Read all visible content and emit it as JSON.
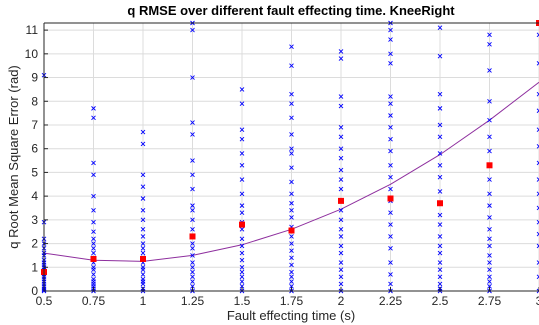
{
  "chart_data": {
    "type": "scatter",
    "title": "q RMSE over different fault effecting time. KneeRight",
    "xlabel": "Fault effecting time (s)",
    "ylabel": "q Root Mean Square Error (rad)",
    "xlim": [
      0.5,
      3
    ],
    "ylim": [
      0,
      11.3
    ],
    "x_ticks": [
      0.5,
      0.75,
      1,
      1.25,
      1.5,
      1.75,
      2,
      2.25,
      2.5,
      2.75,
      3
    ],
    "x_tick_labels": [
      "0.5",
      "0.75",
      "1",
      "1.25",
      "1.5",
      "1.75",
      "2",
      "2.25",
      "2.5",
      "2.75",
      "3"
    ],
    "y_ticks": [
      0,
      1,
      2,
      3,
      4,
      5,
      6,
      7,
      8,
      9,
      10,
      11
    ],
    "y_tick_labels": [
      "0",
      "1",
      "2",
      "3",
      "4",
      "5",
      "6",
      "7",
      "8",
      "9",
      "10",
      "11"
    ],
    "grid": true,
    "colors": {
      "samples": "#0000ff",
      "means": "#ff0000",
      "fit": "#8e2f9e",
      "grid": "#dcdcdc",
      "axis": "#262626"
    },
    "series": [
      {
        "type": "scatter",
        "marker": "x",
        "x": [
          0.5,
          0.5,
          0.5,
          0.5,
          0.5,
          0.5,
          0.5,
          0.5,
          0.5,
          0.5,
          0.5,
          0.5,
          0.5,
          0.5,
          0.5,
          0.5,
          0.5,
          0.5,
          0.5,
          0.5,
          0.5,
          0.5,
          0.75,
          0.75,
          0.75,
          0.75,
          0.75,
          0.75,
          0.75,
          0.75,
          0.75,
          0.75,
          0.75,
          0.75,
          0.75,
          0.75,
          0.75,
          0.75,
          0.75,
          0.75,
          0.75,
          0.75,
          0.75,
          0.75,
          0.75,
          1,
          1,
          1,
          1,
          1,
          1,
          1,
          1,
          1,
          1,
          1,
          1,
          1,
          1,
          1,
          1,
          1,
          1,
          1,
          1,
          1,
          1,
          1.25,
          1.25,
          1.25,
          1.25,
          1.25,
          1.25,
          1.25,
          1.25,
          1.25,
          1.25,
          1.25,
          1.25,
          1.25,
          1.25,
          1.25,
          1.25,
          1.25,
          1.25,
          1.25,
          1.25,
          1.25,
          1.25,
          1.25,
          1.5,
          1.5,
          1.5,
          1.5,
          1.5,
          1.5,
          1.5,
          1.5,
          1.5,
          1.5,
          1.5,
          1.5,
          1.5,
          1.5,
          1.5,
          1.5,
          1.5,
          1.5,
          1.5,
          1.5,
          1.5,
          1.5,
          1.75,
          1.75,
          1.75,
          1.75,
          1.75,
          1.75,
          1.75,
          1.75,
          1.75,
          1.75,
          1.75,
          1.75,
          1.75,
          1.75,
          1.75,
          1.75,
          1.75,
          1.75,
          1.75,
          1.75,
          1.75,
          1.75,
          1.75,
          1.75,
          1.75,
          2,
          2,
          2,
          2,
          2,
          2,
          2,
          2,
          2,
          2,
          2,
          2,
          2,
          2,
          2,
          2,
          2,
          2,
          2,
          2,
          2,
          2,
          2,
          2.25,
          2.25,
          2.25,
          2.25,
          2.25,
          2.25,
          2.25,
          2.25,
          2.25,
          2.25,
          2.25,
          2.25,
          2.25,
          2.25,
          2.25,
          2.25,
          2.25,
          2.25,
          2.25,
          2.25,
          2.25,
          2.25,
          2.25,
          2.5,
          2.5,
          2.5,
          2.5,
          2.5,
          2.5,
          2.5,
          2.5,
          2.5,
          2.5,
          2.5,
          2.5,
          2.5,
          2.5,
          2.5,
          2.5,
          2.5,
          2.5,
          2.5,
          2.5,
          2.5,
          2.5,
          2.75,
          2.75,
          2.75,
          2.75,
          2.75,
          2.75,
          2.75,
          2.75,
          2.75,
          2.75,
          2.75,
          2.75,
          2.75,
          2.75,
          2.75,
          2.75,
          2.75,
          2.75,
          2.75,
          2.75,
          2.75,
          2.75,
          3,
          3,
          3,
          3,
          3,
          3,
          3,
          3,
          3,
          3,
          3,
          3,
          3,
          3,
          3,
          3,
          3
        ],
        "y": [
          9.1,
          2.9,
          2.2,
          2.0,
          1.8,
          1.6,
          1.5,
          1.3,
          1.2,
          1.1,
          1.0,
          0.9,
          0.8,
          0.7,
          0.6,
          0.5,
          0.4,
          0.3,
          0.2,
          0.1,
          0.05,
          0.0,
          7.7,
          7.3,
          5.4,
          4.9,
          4.0,
          3.4,
          2.9,
          2.5,
          2.2,
          2.0,
          1.8,
          1.6,
          1.4,
          1.2,
          1.0,
          0.9,
          0.7,
          0.5,
          0.4,
          0.3,
          0.2,
          0.1,
          0.0,
          6.7,
          6.2,
          4.9,
          4.4,
          3.9,
          3.4,
          3.0,
          2.6,
          2.3,
          2.0,
          1.8,
          1.6,
          1.4,
          1.2,
          1.0,
          0.9,
          0.7,
          0.5,
          0.4,
          0.3,
          0.1,
          0.0,
          11.3,
          11.0,
          9.0,
          7.1,
          6.6,
          5.5,
          4.9,
          4.3,
          3.6,
          3.4,
          3.0,
          2.6,
          2.3,
          2.0,
          1.8,
          1.5,
          1.2,
          1.0,
          0.8,
          0.6,
          0.4,
          0.2,
          0.0,
          8.5,
          7.9,
          6.8,
          6.4,
          5.8,
          5.3,
          4.7,
          4.1,
          3.6,
          3.3,
          2.9,
          2.6,
          2.2,
          1.9,
          1.6,
          1.3,
          1.0,
          0.8,
          0.6,
          0.4,
          0.2,
          0.0,
          10.3,
          9.5,
          8.3,
          7.9,
          7.3,
          6.6,
          6.0,
          5.8,
          5.2,
          4.6,
          4.1,
          3.7,
          3.4,
          3.1,
          2.7,
          2.3,
          2.0,
          1.7,
          1.4,
          1.1,
          0.8,
          0.6,
          0.4,
          0.2,
          0.0,
          10.1,
          9.8,
          8.2,
          7.8,
          6.9,
          6.5,
          6.0,
          5.6,
          5.1,
          4.7,
          4.3,
          3.8,
          3.4,
          3.0,
          2.6,
          2.3,
          1.9,
          1.6,
          1.2,
          0.9,
          0.6,
          0.3,
          0.0,
          11.3,
          11.0,
          10.6,
          10.0,
          9.6,
          8.2,
          7.9,
          7.4,
          6.9,
          6.4,
          5.9,
          5.3,
          4.8,
          4.3,
          3.8,
          3.3,
          2.8,
          2.3,
          1.8,
          1.2,
          0.7,
          0.3,
          0.0,
          11.1,
          9.9,
          8.3,
          7.7,
          7.0,
          6.5,
          5.8,
          5.3,
          4.8,
          4.2,
          3.7,
          3.2,
          2.8,
          2.3,
          1.9,
          1.6,
          1.2,
          0.9,
          0.6,
          0.3,
          0.1,
          0.0,
          10.8,
          10.4,
          9.3,
          8.0,
          7.2,
          6.5,
          5.9,
          5.3,
          4.7,
          4.1,
          3.6,
          3.1,
          2.6,
          2.2,
          1.9,
          1.5,
          1.2,
          0.9,
          0.6,
          0.4,
          0.2,
          0.0,
          11.3,
          10.8,
          9.6,
          8.3,
          7.6,
          6.8,
          6.1,
          5.4,
          4.7,
          4.1,
          3.5,
          2.9,
          2.4,
          1.9,
          1.2,
          0.6,
          0.0
        ]
      },
      {
        "type": "scatter",
        "marker": "square",
        "x": [
          0.5,
          0.75,
          1,
          1.25,
          1.5,
          1.75,
          2,
          2.25,
          2.5,
          2.75,
          3
        ],
        "y": [
          0.8,
          1.35,
          1.35,
          2.3,
          2.8,
          2.55,
          3.8,
          3.9,
          3.7,
          5.3,
          11.3
        ]
      },
      {
        "type": "line",
        "x": [
          0.5,
          0.75,
          1,
          1.25,
          1.5,
          1.75,
          2,
          2.25,
          2.5,
          2.75,
          3
        ],
        "y": [
          1.6,
          1.3,
          1.25,
          1.5,
          1.95,
          2.6,
          3.45,
          4.5,
          5.75,
          7.2,
          8.8
        ]
      }
    ]
  }
}
